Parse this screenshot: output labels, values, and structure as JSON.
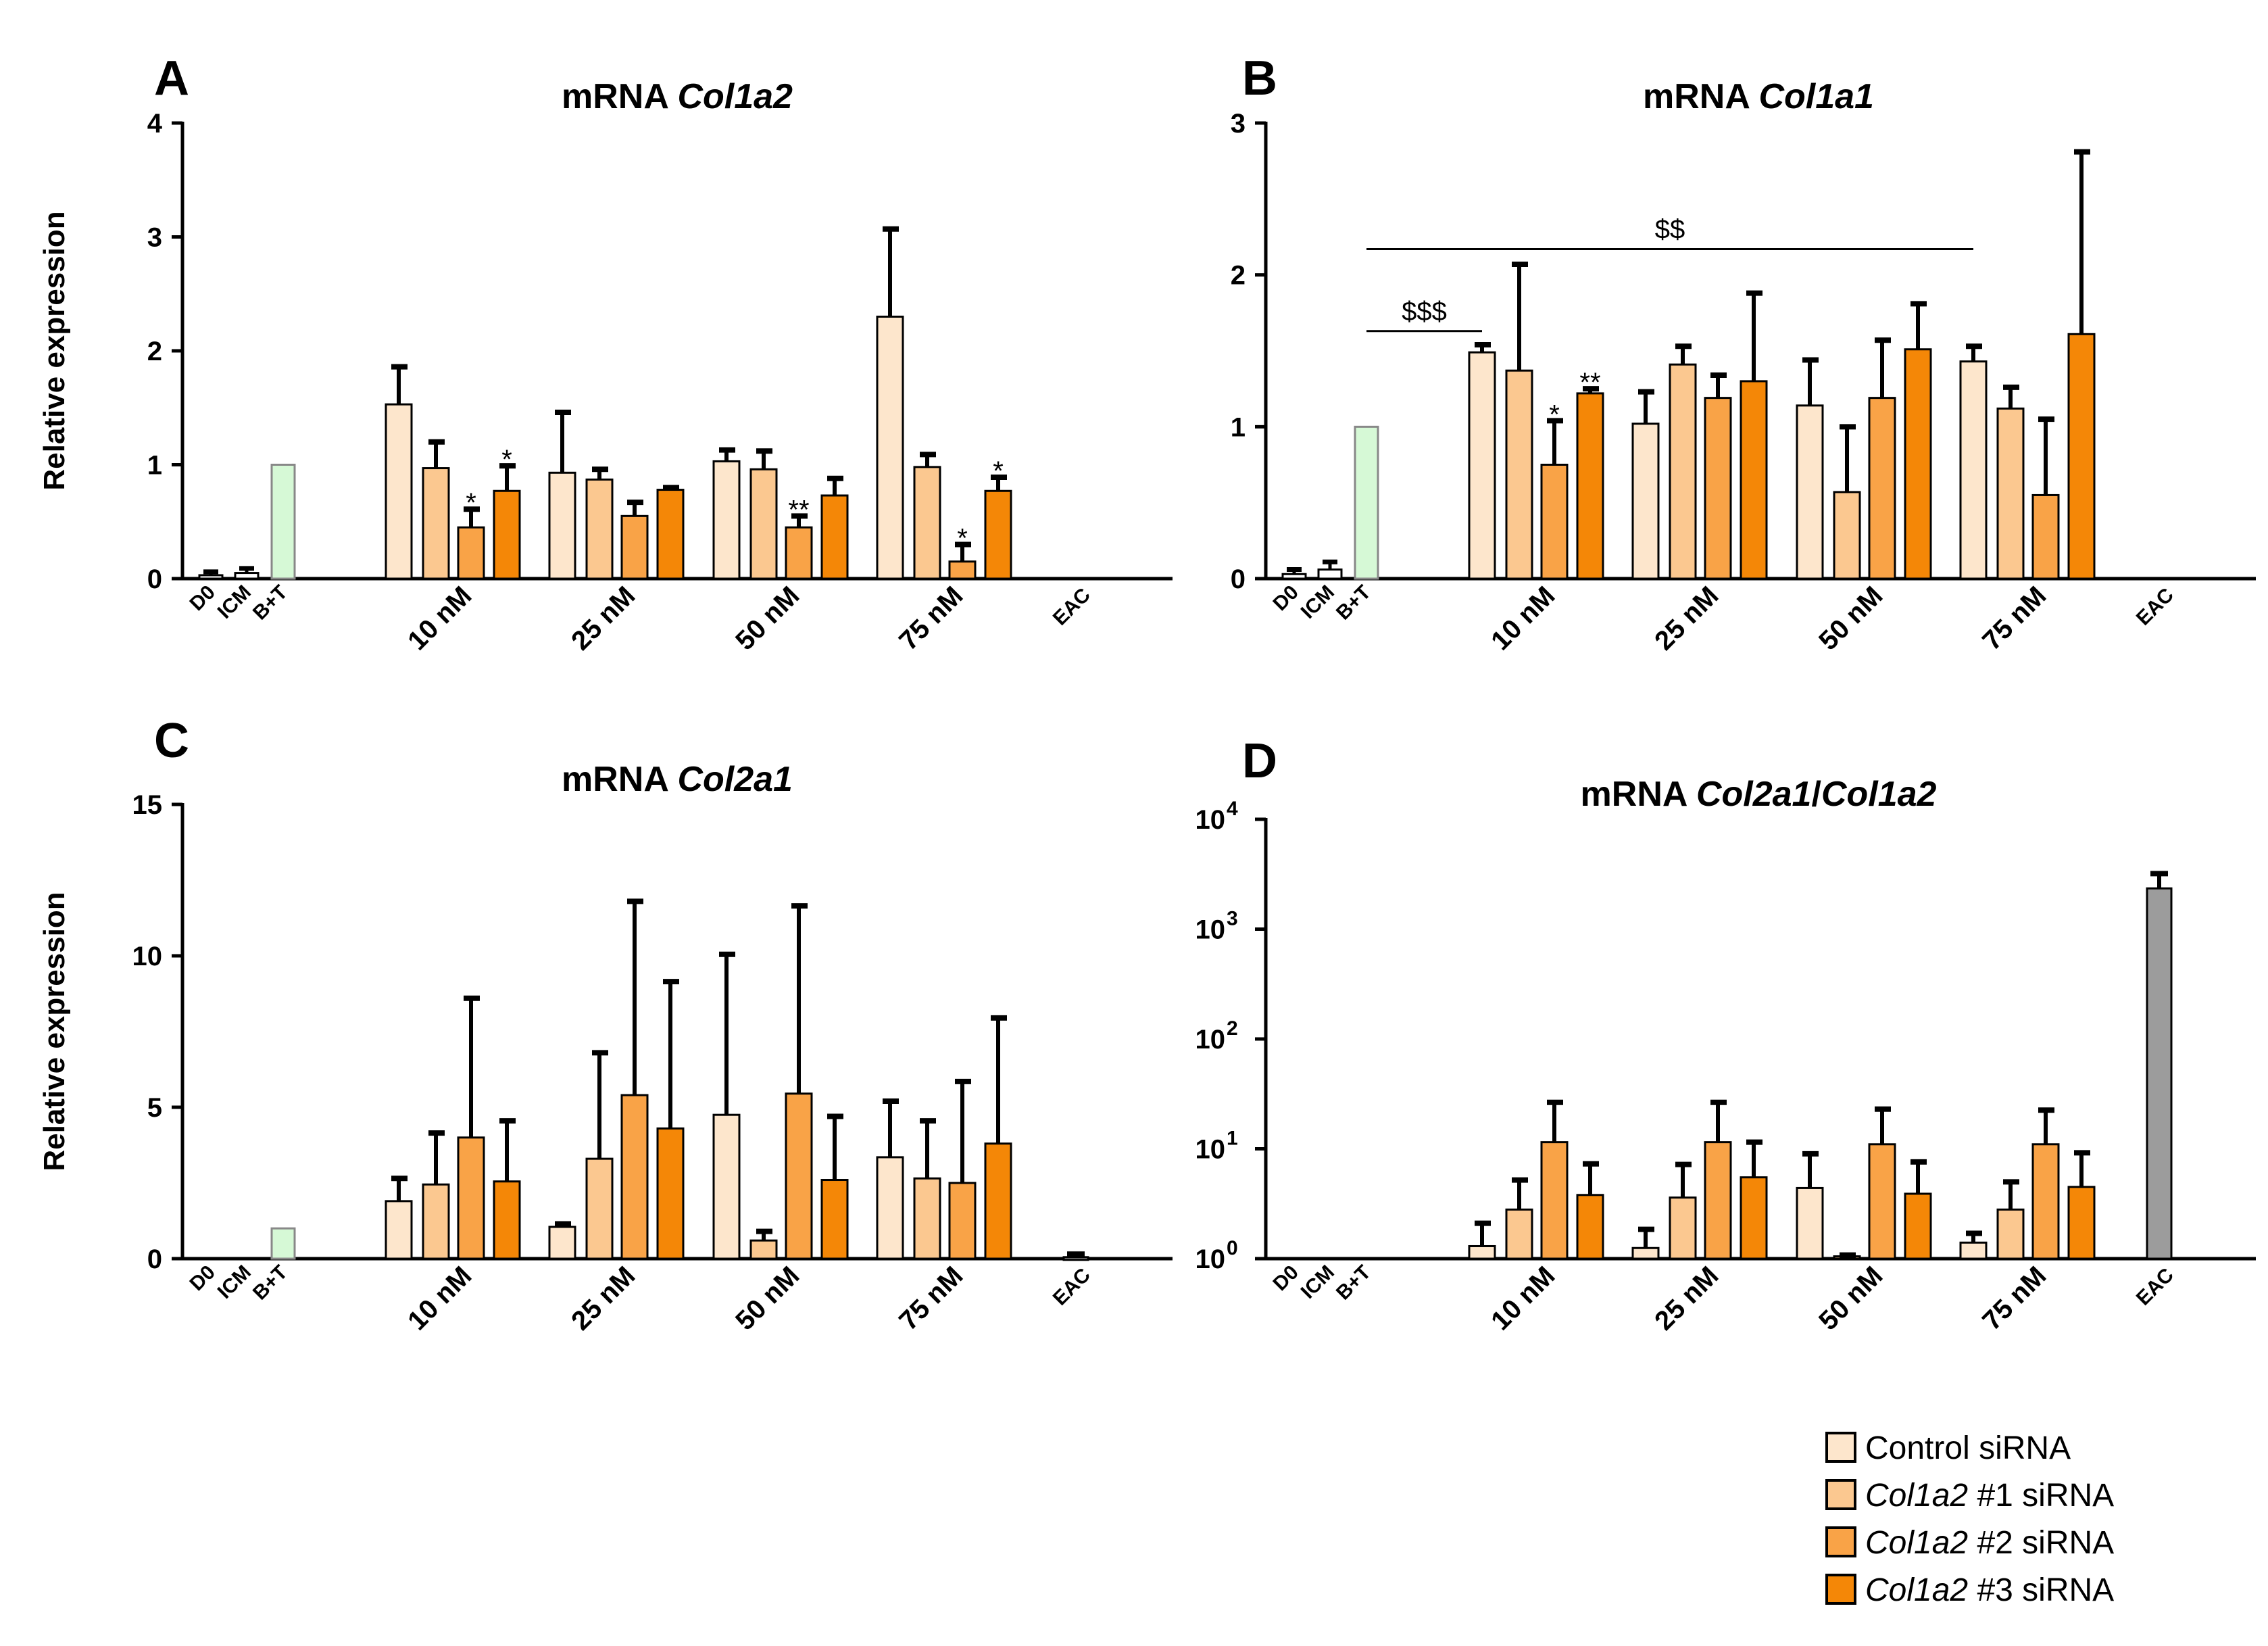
{
  "legend": [
    {
      "pre": "Control siRNA",
      "italic": "",
      "post": "",
      "color": "#FDE6CC"
    },
    {
      "pre": "",
      "italic": "Col1a2",
      "post": " #1 siRNA",
      "color": "#FBC890"
    },
    {
      "pre": "",
      "italic": "Col1a2",
      "post": " #2 siRNA",
      "color": "#F9A347"
    },
    {
      "pre": "",
      "italic": "Col1a2",
      "post": " #3 siRNA",
      "color": "#F48707"
    }
  ],
  "colors": {
    "bt": "#D6F9D6",
    "bt_stroke": "#888888",
    "eac": "#9C9C9C",
    "ctrl_groups": [
      "D0",
      "ICM",
      "B+T"
    ]
  },
  "chart_data": [
    {
      "id": "A",
      "type": "bar",
      "panel_letter": "A",
      "title_pre": "mRNA ",
      "title_italic": "Col1a2",
      "title_mid": "",
      "title_italic2": "",
      "title_post": "",
      "ylabel": "Relative expression",
      "scale": "linear",
      "ylim": [
        0,
        4
      ],
      "yticks": [
        0,
        1,
        2,
        3,
        4
      ],
      "ytick_labels": [
        "0",
        "1",
        "2",
        "3",
        "4"
      ],
      "small_groups": [
        "D0",
        "ICM",
        "B+T"
      ],
      "small_values": [
        0.03,
        0.05,
        1.0
      ],
      "small_errors": [
        0.03,
        0.04,
        0
      ],
      "groups": [
        "10 nM",
        "25 nM",
        "50 nM",
        "75 nM"
      ],
      "series_values": [
        [
          1.53,
          0.93,
          1.03,
          2.3
        ],
        [
          0.97,
          0.87,
          0.96,
          0.98
        ],
        [
          0.45,
          0.55,
          0.45,
          0.15
        ],
        [
          0.77,
          0.78,
          0.73,
          0.77
        ]
      ],
      "series_errors": [
        [
          0.33,
          0.53,
          0.1,
          0.77
        ],
        [
          0.23,
          0.09,
          0.16,
          0.11
        ],
        [
          0.16,
          0.12,
          0.1,
          0.15
        ],
        [
          0.22,
          0.02,
          0.15,
          0.12
        ]
      ],
      "eac_label": "EAC",
      "eac_value": null,
      "eac_error": null,
      "annotations": [
        {
          "group": 0,
          "series": 2,
          "text": "*"
        },
        {
          "group": 0,
          "series": 3,
          "text": "*"
        },
        {
          "group": 2,
          "series": 2,
          "text": "**"
        },
        {
          "group": 3,
          "series": 2,
          "text": "*"
        },
        {
          "group": 3,
          "series": 3,
          "text": "*"
        }
      ],
      "brackets": []
    },
    {
      "id": "B",
      "type": "bar",
      "panel_letter": "B",
      "title_pre": "mRNA ",
      "title_italic": "Col1a1",
      "title_mid": "",
      "title_italic2": "",
      "title_post": "",
      "ylabel": "",
      "scale": "linear",
      "ylim": [
        0,
        3
      ],
      "yticks": [
        0,
        1,
        2,
        3
      ],
      "ytick_labels": [
        "0",
        "1",
        "2",
        "3"
      ],
      "small_groups": [
        "D0",
        "ICM",
        "B+T"
      ],
      "small_values": [
        0.03,
        0.06,
        1.0
      ],
      "small_errors": [
        0.03,
        0.05,
        0
      ],
      "groups": [
        "10 nM",
        "25 nM",
        "50 nM",
        "75 nM"
      ],
      "series_values": [
        [
          1.49,
          1.02,
          1.14,
          1.43
        ],
        [
          1.37,
          1.41,
          0.57,
          1.12
        ],
        [
          0.75,
          1.19,
          1.19,
          0.55
        ],
        [
          1.22,
          1.3,
          1.51,
          1.61
        ]
      ],
      "series_errors": [
        [
          0.05,
          0.21,
          0.3,
          0.1
        ],
        [
          0.7,
          0.12,
          0.43,
          0.14
        ],
        [
          0.29,
          0.15,
          0.38,
          0.5
        ],
        [
          0.03,
          0.58,
          0.3,
          1.2
        ]
      ],
      "eac_label": "EAC",
      "eac_value": null,
      "eac_error": null,
      "annotations": [
        {
          "group": 0,
          "series": 2,
          "text": "*"
        },
        {
          "group": 0,
          "series": 3,
          "text": "**"
        }
      ],
      "brackets": [
        {
          "text": "$$$",
          "y": 1.63,
          "from": "bt",
          "to_group": 0,
          "to_series": 0
        },
        {
          "text": "$$",
          "y": 2.17,
          "from": "bt",
          "to_group": 3,
          "to_series": 0
        }
      ]
    },
    {
      "id": "C",
      "type": "bar",
      "panel_letter": "C",
      "title_pre": "mRNA ",
      "title_italic": "Col2a1",
      "title_mid": "",
      "title_italic2": "",
      "title_post": "",
      "ylabel": "Relative expression",
      "scale": "linear",
      "ylim": [
        0,
        15
      ],
      "yticks": [
        0,
        5,
        10,
        15
      ],
      "ytick_labels": [
        "0",
        "5",
        "10",
        "15"
      ],
      "small_groups": [
        "D0",
        "ICM",
        "B+T"
      ],
      "small_values": [
        0,
        0,
        1.0
      ],
      "small_errors": [
        0,
        0,
        0
      ],
      "groups": [
        "10 nM",
        "25 nM",
        "50 nM",
        "75 nM"
      ],
      "series_values": [
        [
          1.9,
          1.05,
          4.75,
          3.35
        ],
        [
          2.45,
          3.3,
          0.6,
          2.65
        ],
        [
          4.0,
          5.4,
          5.45,
          2.5
        ],
        [
          2.55,
          4.3,
          2.6,
          3.8
        ]
      ],
      "series_errors": [
        [
          0.75,
          0.1,
          5.3,
          1.85
        ],
        [
          1.7,
          3.5,
          0.3,
          1.9
        ],
        [
          4.6,
          6.4,
          6.2,
          3.35
        ],
        [
          2.0,
          4.85,
          2.1,
          4.15
        ]
      ],
      "eac_label": "EAC",
      "eac_value": 0.05,
      "eac_error": 0.1,
      "annotations": [],
      "brackets": []
    },
    {
      "id": "D",
      "type": "bar",
      "panel_letter": "D",
      "title_pre": "mRNA ",
      "title_italic": "Col2a1",
      "title_mid": "/",
      "title_italic2": "Col1a2",
      "title_post": "",
      "ylabel": "",
      "scale": "log",
      "ylim": [
        0,
        4
      ],
      "yticks": [
        0,
        1,
        2,
        3,
        4
      ],
      "ytick_labels": [
        "10",
        "10",
        "10",
        "10",
        "10"
      ],
      "ytick_exps": [
        "0",
        "1",
        "2",
        "3",
        "4"
      ],
      "small_groups": [
        "D0",
        "ICM",
        "B+T"
      ],
      "small_values": [
        0,
        0,
        0
      ],
      "small_errors": [
        0,
        0,
        0
      ],
      "groups": [
        "10 nM",
        "25 nM",
        "50 nM",
        "75 nM"
      ],
      "series_values": [
        [
          1.3,
          1.25,
          4.4,
          1.4
        ],
        [
          2.8,
          3.6,
          1.05,
          2.8
        ],
        [
          11.5,
          11.5,
          11.0,
          11.0
        ],
        [
          3.8,
          5.5,
          3.9,
          4.5
        ]
      ],
      "series_errors": [
        [
          0.8,
          0.6,
          4.6,
          0.3
        ],
        [
          2.4,
          3.6,
          0.03,
          2.2
        ],
        [
          15.0,
          15.0,
          12.0,
          11.5
        ],
        [
          3.5,
          6.0,
          3.7,
          4.7
        ]
      ],
      "eac_label": "EAC",
      "eac_value": 2350,
      "eac_error": 850,
      "annotations": [],
      "brackets": []
    }
  ]
}
